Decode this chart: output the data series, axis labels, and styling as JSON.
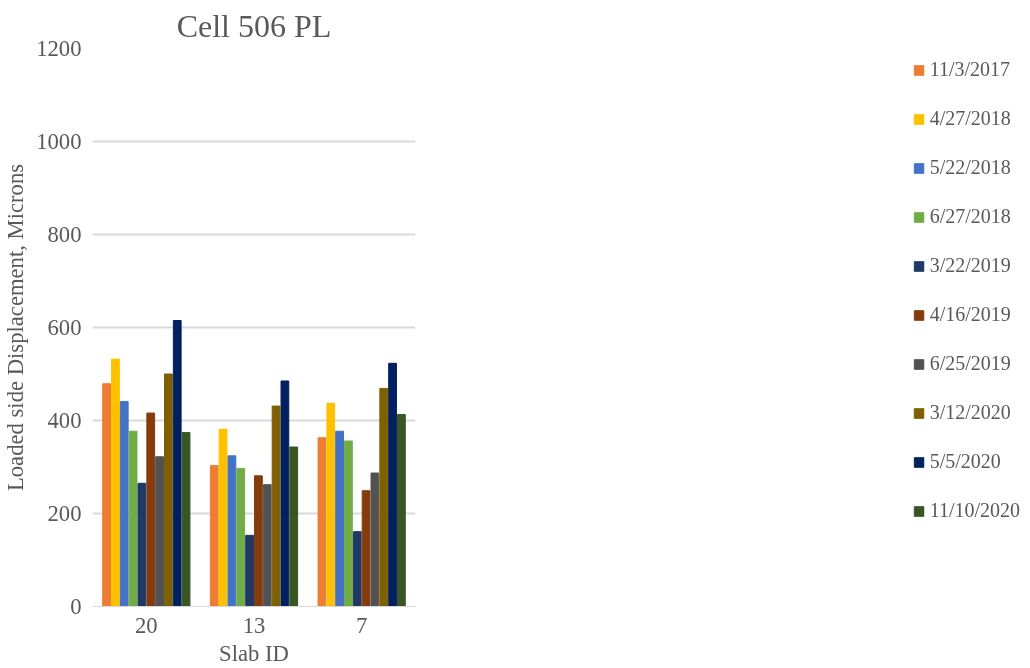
{
  "chart_data": {
    "type": "bar",
    "title": "Cell 506 PL",
    "xlabel": "Slab ID",
    "ylabel": "Loaded side Displacement, Microns",
    "categories": [
      "20",
      "13",
      "7"
    ],
    "series": [
      {
        "name": "11/3/2017",
        "color": "#ed7d31",
        "values": [
          479,
          303,
          363
        ]
      },
      {
        "name": "4/27/2018",
        "color": "#ffc000",
        "values": [
          532,
          381,
          437
        ]
      },
      {
        "name": "5/22/2018",
        "color": "#4472c4",
        "values": [
          441,
          324,
          377
        ]
      },
      {
        "name": "6/27/2018",
        "color": "#70ad47",
        "values": [
          377,
          297,
          356
        ]
      },
      {
        "name": "3/22/2019",
        "color": "#1f3864",
        "values": [
          265,
          153,
          161
        ]
      },
      {
        "name": "4/16/2019",
        "color": "#843c0c",
        "values": [
          416,
          281,
          249
        ]
      },
      {
        "name": "6/25/2019",
        "color": "#525252",
        "values": [
          322,
          262,
          287
        ]
      },
      {
        "name": "3/12/2020",
        "color": "#7f6000",
        "values": [
          500,
          431,
          469
        ]
      },
      {
        "name": "5/5/2020",
        "color": "#002060",
        "values": [
          615,
          485,
          523
        ]
      },
      {
        "name": "11/10/2020",
        "color": "#375623",
        "values": [
          374,
          343,
          413
        ]
      }
    ],
    "ylim": [
      0,
      1200
    ],
    "yticks": [
      0,
      200,
      400,
      600,
      800,
      1000,
      1200
    ],
    "grid": "y",
    "legend": "right"
  }
}
